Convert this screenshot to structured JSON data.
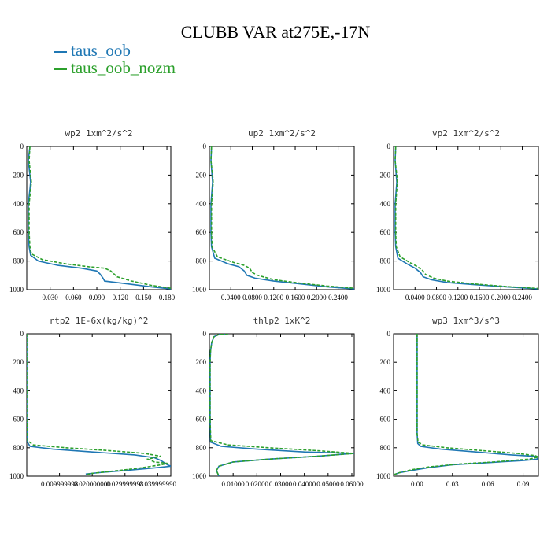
{
  "figure": {
    "title": "CLUBB VAR at275E,-17N",
    "legend": [
      {
        "label": "taus_oob",
        "color": "#1f77b4"
      },
      {
        "label": "taus_oob_nozm",
        "color": "#2ca02c"
      }
    ]
  },
  "chart_data": [
    {
      "type": "line",
      "title": "wp2   1xm^2/s^2",
      "xlim": [
        0,
        0.185
      ],
      "ylim": [
        1000,
        0
      ],
      "yticks": [
        0,
        200,
        400,
        600,
        800,
        1000
      ],
      "xticks": [
        0.03,
        0.06,
        0.09,
        0.12,
        0.15,
        0.18
      ],
      "xtick_labels": [
        "0.030",
        "0.060",
        "0.090",
        "0.120",
        "0.150",
        "0.180"
      ],
      "series": [
        {
          "name": "taus_oob",
          "color": "#1f77b4",
          "dashed": false,
          "points": [
            [
              0.004,
              0
            ],
            [
              0.002,
              100
            ],
            [
              0.004,
              200
            ],
            [
              0.005,
              250
            ],
            [
              0.004,
              300
            ],
            [
              0.002,
              400
            ],
            [
              0.002,
              600
            ],
            [
              0.003,
              700
            ],
            [
              0.005,
              760
            ],
            [
              0.015,
              800
            ],
            [
              0.04,
              830
            ],
            [
              0.07,
              850
            ],
            [
              0.09,
              870
            ],
            [
              0.094,
              890
            ],
            [
              0.098,
              920
            ],
            [
              0.1,
              940
            ],
            [
              0.13,
              960
            ],
            [
              0.16,
              980
            ],
            [
              0.185,
              995
            ]
          ]
        },
        {
          "name": "taus_oob_nozm",
          "color": "#2ca02c",
          "dashed": true,
          "points": [
            [
              0.004,
              0
            ],
            [
              0.003,
              100
            ],
            [
              0.005,
              200
            ],
            [
              0.006,
              250
            ],
            [
              0.005,
              300
            ],
            [
              0.003,
              400
            ],
            [
              0.003,
              600
            ],
            [
              0.004,
              700
            ],
            [
              0.006,
              750
            ],
            [
              0.02,
              790
            ],
            [
              0.05,
              820
            ],
            [
              0.08,
              840
            ],
            [
              0.1,
              850
            ],
            [
              0.108,
              870
            ],
            [
              0.112,
              890
            ],
            [
              0.116,
              910
            ],
            [
              0.135,
              940
            ],
            [
              0.16,
              970
            ],
            [
              0.185,
              990
            ]
          ]
        }
      ]
    },
    {
      "type": "line",
      "title": "up2   1xm^2/s^2",
      "xlim": [
        0,
        0.27
      ],
      "ylim": [
        1000,
        0
      ],
      "yticks": [
        0,
        200,
        400,
        600,
        800,
        1000
      ],
      "xticks": [
        0.04,
        0.08,
        0.12,
        0.16,
        0.2,
        0.24
      ],
      "xtick_labels": [
        "0.0400",
        "0.0800",
        "0.1200",
        "0.1600",
        "0.2000",
        "0.2400"
      ],
      "series": [
        {
          "name": "taus_oob",
          "color": "#1f77b4",
          "dashed": false,
          "points": [
            [
              0.004,
              0
            ],
            [
              0.003,
              100
            ],
            [
              0.005,
              200
            ],
            [
              0.006,
              250
            ],
            [
              0.005,
              300
            ],
            [
              0.003,
              400
            ],
            [
              0.003,
              600
            ],
            [
              0.004,
              700
            ],
            [
              0.01,
              780
            ],
            [
              0.035,
              820
            ],
            [
              0.055,
              840
            ],
            [
              0.065,
              870
            ],
            [
              0.07,
              900
            ],
            [
              0.085,
              920
            ],
            [
              0.12,
              940
            ],
            [
              0.17,
              960
            ],
            [
              0.22,
              980
            ],
            [
              0.27,
              995
            ]
          ]
        },
        {
          "name": "taus_oob_nozm",
          "color": "#2ca02c",
          "dashed": true,
          "points": [
            [
              0.004,
              0
            ],
            [
              0.003,
              100
            ],
            [
              0.006,
              200
            ],
            [
              0.007,
              250
            ],
            [
              0.006,
              300
            ],
            [
              0.004,
              400
            ],
            [
              0.004,
              600
            ],
            [
              0.005,
              700
            ],
            [
              0.015,
              770
            ],
            [
              0.045,
              810
            ],
            [
              0.065,
              830
            ],
            [
              0.075,
              850
            ],
            [
              0.08,
              880
            ],
            [
              0.09,
              900
            ],
            [
              0.12,
              930
            ],
            [
              0.17,
              955
            ],
            [
              0.22,
              975
            ],
            [
              0.27,
              990
            ]
          ]
        }
      ]
    },
    {
      "type": "line",
      "title": "vp2   1xm^2/s^2",
      "xlim": [
        0,
        0.27
      ],
      "ylim": [
        1000,
        0
      ],
      "yticks": [
        0,
        200,
        400,
        600,
        800,
        1000
      ],
      "xticks": [
        0.04,
        0.08,
        0.12,
        0.16,
        0.2,
        0.24
      ],
      "xtick_labels": [
        "0.0400",
        "0.0800",
        "0.1200",
        "0.1600",
        "0.2000",
        "0.2400"
      ],
      "series": [
        {
          "name": "taus_oob",
          "color": "#1f77b4",
          "dashed": false,
          "points": [
            [
              0.004,
              0
            ],
            [
              0.003,
              100
            ],
            [
              0.005,
              200
            ],
            [
              0.006,
              250
            ],
            [
              0.005,
              300
            ],
            [
              0.003,
              400
            ],
            [
              0.003,
              600
            ],
            [
              0.004,
              700
            ],
            [
              0.008,
              780
            ],
            [
              0.025,
              820
            ],
            [
              0.04,
              850
            ],
            [
              0.05,
              880
            ],
            [
              0.055,
              910
            ],
            [
              0.07,
              930
            ],
            [
              0.1,
              950
            ],
            [
              0.15,
              965
            ],
            [
              0.21,
              980
            ],
            [
              0.27,
              995
            ]
          ]
        },
        {
          "name": "taus_oob_nozm",
          "color": "#2ca02c",
          "dashed": true,
          "points": [
            [
              0.004,
              0
            ],
            [
              0.003,
              100
            ],
            [
              0.006,
              200
            ],
            [
              0.007,
              250
            ],
            [
              0.006,
              300
            ],
            [
              0.004,
              400
            ],
            [
              0.004,
              600
            ],
            [
              0.005,
              700
            ],
            [
              0.012,
              770
            ],
            [
              0.03,
              810
            ],
            [
              0.045,
              840
            ],
            [
              0.055,
              870
            ],
            [
              0.06,
              895
            ],
            [
              0.075,
              920
            ],
            [
              0.1,
              940
            ],
            [
              0.15,
              960
            ],
            [
              0.21,
              978
            ],
            [
              0.27,
              992
            ]
          ]
        }
      ]
    },
    {
      "type": "line",
      "title": "rtp2   1E-6x(kg/kg)^2",
      "xlim": [
        0,
        0.044
      ],
      "ylim": [
        1000,
        0
      ],
      "yticks": [
        0,
        200,
        400,
        600,
        800,
        1000
      ],
      "xticks": [
        0.01,
        0.02,
        0.03,
        0.04
      ],
      "xtick_labels": [
        "0.009999998",
        "0.020000000",
        "0.029999998",
        "0.039999990"
      ],
      "series": [
        {
          "name": "taus_oob",
          "color": "#1f77b4",
          "dashed": false,
          "points": [
            [
              0,
              0
            ],
            [
              0,
              600
            ],
            [
              0.0002,
              760
            ],
            [
              0.001,
              790
            ],
            [
              0.008,
              810
            ],
            [
              0.02,
              830
            ],
            [
              0.033,
              850
            ],
            [
              0.039,
              870
            ],
            [
              0.041,
              890
            ],
            [
              0.043,
              920
            ],
            [
              0.044,
              930
            ],
            [
              0.04,
              940
            ],
            [
              0.03,
              960
            ],
            [
              0.022,
              975
            ],
            [
              0.018,
              985
            ]
          ]
        },
        {
          "name": "taus_oob_nozm",
          "color": "#2ca02c",
          "dashed": true,
          "points": [
            [
              0,
              0
            ],
            [
              0,
              600
            ],
            [
              0.0003,
              750
            ],
            [
              0.002,
              780
            ],
            [
              0.012,
              800
            ],
            [
              0.025,
              820
            ],
            [
              0.036,
              840
            ],
            [
              0.041,
              860
            ],
            [
              0.037,
              880
            ],
            [
              0.039,
              900
            ],
            [
              0.043,
              910
            ],
            [
              0.041,
              920
            ],
            [
              0.034,
              945
            ],
            [
              0.026,
              965
            ],
            [
              0.02,
              980
            ],
            [
              0.018,
              990
            ]
          ]
        }
      ]
    },
    {
      "type": "line",
      "title": "thlp2   1xK^2",
      "xlim": [
        0,
        0.061
      ],
      "ylim": [
        1000,
        0
      ],
      "yticks": [
        0,
        200,
        400,
        600,
        800,
        1000
      ],
      "xticks": [
        0.01,
        0.02,
        0.03,
        0.04,
        0.05,
        0.06
      ],
      "xtick_labels": [
        "0.01000",
        "0.02000",
        "0.03000",
        "0.04000",
        "0.05000",
        "0.06000"
      ],
      "series": [
        {
          "name": "taus_oob",
          "color": "#1f77b4",
          "dashed": false,
          "points": [
            [
              0.008,
              0
            ],
            [
              0.004,
              5
            ],
            [
              0.002,
              20
            ],
            [
              0.001,
              60
            ],
            [
              0.0005,
              120
            ],
            [
              0.0003,
              200
            ],
            [
              0.0003,
              600
            ],
            [
              0.0005,
              760
            ],
            [
              0.005,
              790
            ],
            [
              0.02,
              810
            ],
            [
              0.04,
              830
            ],
            [
              0.061,
              840
            ],
            [
              0.045,
              860
            ],
            [
              0.025,
              880
            ],
            [
              0.01,
              900
            ],
            [
              0.004,
              930
            ],
            [
              0.003,
              960
            ],
            [
              0.004,
              1000
            ]
          ]
        },
        {
          "name": "taus_oob_nozm",
          "color": "#2ca02c",
          "dashed": true,
          "points": [
            [
              0.008,
              0
            ],
            [
              0.004,
              5
            ],
            [
              0.002,
              20
            ],
            [
              0.001,
              60
            ],
            [
              0.0005,
              120
            ],
            [
              0.0003,
              200
            ],
            [
              0.0003,
              600
            ],
            [
              0.0006,
              750
            ],
            [
              0.008,
              780
            ],
            [
              0.025,
              800
            ],
            [
              0.045,
              820
            ],
            [
              0.061,
              840
            ],
            [
              0.045,
              860
            ],
            [
              0.025,
              880
            ],
            [
              0.01,
              900
            ],
            [
              0.004,
              930
            ],
            [
              0.003,
              960
            ],
            [
              0.004,
              1000
            ]
          ]
        }
      ]
    },
    {
      "type": "line",
      "title": "wp3   1xm^3/s^3",
      "xlim": [
        -0.02,
        0.103
      ],
      "ylim": [
        1000,
        0
      ],
      "yticks": [
        0,
        200,
        400,
        600,
        800,
        1000
      ],
      "xticks": [
        0,
        0.03,
        0.06,
        0.09
      ],
      "xtick_labels": [
        "0.00",
        "0.03",
        "0.06",
        "0.09"
      ],
      "series": [
        {
          "name": "taus_oob",
          "color": "#1f77b4",
          "dashed": false,
          "points": [
            [
              0,
              0
            ],
            [
              0,
              700
            ],
            [
              0.0005,
              770
            ],
            [
              0.003,
              790
            ],
            [
              0.02,
              810
            ],
            [
              0.05,
              830
            ],
            [
              0.08,
              850
            ],
            [
              0.1,
              860
            ],
            [
              0.103,
              880
            ],
            [
              0.09,
              890
            ],
            [
              0.06,
              905
            ],
            [
              0.03,
              920
            ],
            [
              0.01,
              940
            ],
            [
              -0.005,
              960
            ],
            [
              -0.015,
              975
            ],
            [
              -0.02,
              990
            ]
          ]
        },
        {
          "name": "taus_oob_nozm",
          "color": "#2ca02c",
          "dashed": true,
          "points": [
            [
              0,
              0
            ],
            [
              0,
              700
            ],
            [
              0.0008,
              760
            ],
            [
              0.005,
              780
            ],
            [
              0.025,
              800
            ],
            [
              0.055,
              820
            ],
            [
              0.085,
              840
            ],
            [
              0.1,
              855
            ],
            [
              0.103,
              865
            ],
            [
              0.095,
              880
            ],
            [
              0.065,
              900
            ],
            [
              0.035,
              915
            ],
            [
              0.01,
              935
            ],
            [
              -0.005,
              955
            ],
            [
              -0.015,
              975
            ],
            [
              -0.02,
              990
            ]
          ]
        }
      ]
    }
  ]
}
